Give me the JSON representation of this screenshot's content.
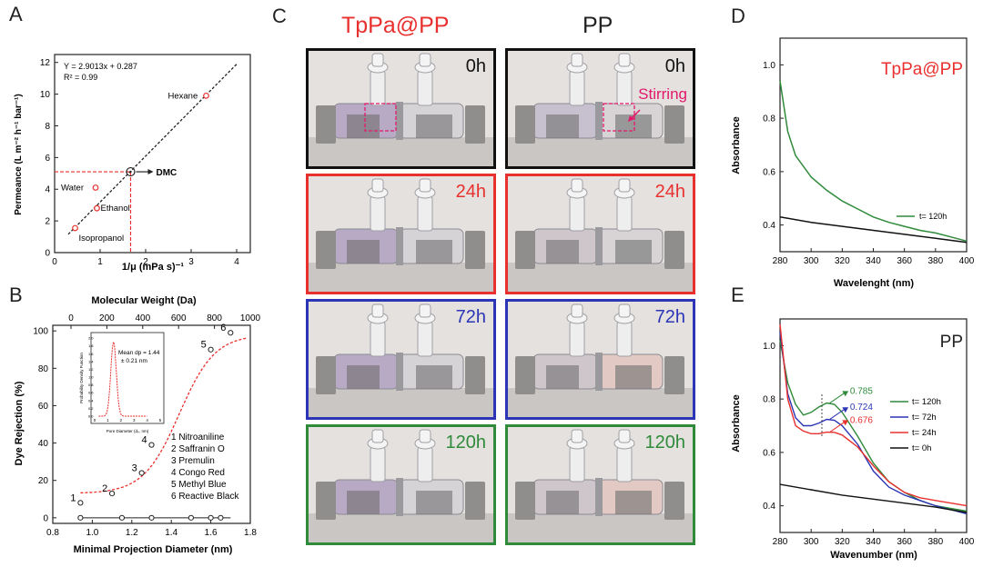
{
  "panels": {
    "A": "A",
    "B": "B",
    "C": "C",
    "D": "D",
    "E": "E"
  },
  "panelA": {
    "equation": "Y = 2.9013x + 0.287",
    "r2": "R² = 0.99",
    "xlabel": "1/μ (mPa s)⁻¹",
    "ylabel": "Permeance (L m⁻² h⁻¹ bar⁻¹)",
    "dmc_label": "DMC",
    "xticks": [
      "0",
      "1",
      "2",
      "3",
      "4"
    ],
    "yticks": [
      "0",
      "2",
      "4",
      "6",
      "8",
      "10",
      "12"
    ],
    "points": [
      {
        "label": "Hexane",
        "x": 3.33,
        "y": 9.9
      },
      {
        "label": "Water",
        "x": 0.9,
        "y": 4.1
      },
      {
        "label": "Ethanol",
        "x": 0.93,
        "y": 2.8
      },
      {
        "label": "Isopropanol",
        "x": 0.45,
        "y": 1.55
      }
    ],
    "dmc": {
      "x": 1.67,
      "y": 5.1
    }
  },
  "panelB": {
    "top_label": "Molecular Weight (Da)",
    "top_ticks": [
      "0",
      "200",
      "400",
      "600",
      "800",
      "1000"
    ],
    "xlabel": "Minimal Projection Diameter (nm)",
    "ylabel": "Dye Rejection (%)",
    "xticks": [
      "0.8",
      "1.0",
      "1.2",
      "1.4",
      "1.6",
      "1.8"
    ],
    "yticks": [
      "0",
      "20",
      "40",
      "60",
      "80",
      "100"
    ],
    "inset_text_line1": "Mean dp = 1.44",
    "inset_text_line2": "± 0.21 nm",
    "inset_xlabel": "Pore Diameter (dₚ, nm)",
    "inset_ylabel": "Probability Density Function",
    "inset_yticks": [
      "0.0",
      "0.2",
      "0.4",
      "0.6",
      "0.8",
      "1.0",
      "1.2",
      "1.4",
      "1.6",
      "1.8",
      "2.0"
    ],
    "inset_xticks": [
      "0",
      "1",
      "2",
      "3",
      "4",
      "5"
    ],
    "legend": [
      "1 Nitroaniline",
      "2 Saffranin O",
      "3 Premulin",
      "4 Congo Red",
      "5 Methyl Blue",
      "6 Reactive Black"
    ],
    "dyes": [
      {
        "n": "1",
        "d": 0.94,
        "rej": 8
      },
      {
        "n": "2",
        "d": 1.1,
        "rej": 13
      },
      {
        "n": "3",
        "d": 1.25,
        "rej": 24
      },
      {
        "n": "4",
        "d": 1.3,
        "rej": 39
      },
      {
        "n": "5",
        "d": 1.6,
        "rej": 90
      },
      {
        "n": "6",
        "d": 1.7,
        "rej": 99
      }
    ]
  },
  "panelC": {
    "col1_title": "TpPa@PP",
    "col2_title": "PP",
    "rows": [
      {
        "time": "0h",
        "color": "#111111"
      },
      {
        "time": "24h",
        "color": "#e8302e"
      },
      {
        "time": "72h",
        "color": "#2b35b5"
      },
      {
        "time": "120h",
        "color": "#2f8a3a"
      }
    ],
    "stirring_label": "Stirring"
  },
  "panelD": {
    "title": "TpPa@PP",
    "xlabel": "Wavelenght (nm)",
    "ylabel": "Absorbance",
    "xticks": [
      "280",
      "300",
      "320",
      "340",
      "360",
      "380",
      "400"
    ],
    "yticks": [
      "0.4",
      "0.6",
      "0.8",
      "1.0"
    ],
    "legend": "t= 120h"
  },
  "panelE": {
    "title": "PP",
    "xlabel": "Wavenumber (nm)",
    "ylabel": "Absorbance",
    "xticks": [
      "280",
      "300",
      "320",
      "340",
      "360",
      "380",
      "400"
    ],
    "yticks": [
      "0.4",
      "0.6",
      "0.8",
      "1.0"
    ],
    "legend": [
      "t= 120h",
      "t= 72h",
      "t= 24h",
      "t= 0h"
    ],
    "peak_labels": [
      "0.785",
      "0.724",
      "0.676"
    ]
  },
  "colors": {
    "green": "#2f8a3a",
    "blue": "#2b35b5",
    "red": "#e8302e",
    "black": "#111111",
    "dashed_red": "#e8302e"
  },
  "chart_data": [
    {
      "type": "scatter",
      "title": "",
      "xlabel": "1/μ (mPa s)⁻¹",
      "ylabel": "Permeance (L m⁻² h⁻¹ bar⁻¹)",
      "xlim": [
        0,
        4.3
      ],
      "ylim": [
        0,
        12.5
      ],
      "x": [
        0.45,
        0.93,
        0.9,
        1.67,
        3.33
      ],
      "y": [
        1.55,
        2.8,
        4.1,
        5.1,
        9.9
      ],
      "fit": "Y = 2.9013x + 0.287"
    },
    {
      "type": "scatter",
      "xlabel": "Minimal Projection Diameter (nm)",
      "ylabel": "Dye Rejection (%)",
      "xlim": [
        0.8,
        1.8
      ],
      "ylim": [
        -3,
        103
      ],
      "x": [
        0.94,
        1.1,
        1.25,
        1.3,
        1.6,
        1.7
      ],
      "y": [
        8,
        13,
        24,
        39,
        90,
        99
      ]
    },
    {
      "type": "line",
      "xlabel": "Wavelenght (nm)",
      "ylabel": "Absorbance",
      "xlim": [
        280,
        400
      ],
      "ylim": [
        0.3,
        1.1
      ],
      "series": [
        {
          "name": "t= 120h",
          "x": [
            280,
            285,
            290,
            300,
            310,
            320,
            330,
            340,
            350,
            360,
            370,
            380,
            390,
            400
          ],
          "y": [
            0.94,
            0.75,
            0.66,
            0.58,
            0.53,
            0.49,
            0.46,
            0.43,
            0.41,
            0.395,
            0.38,
            0.37,
            0.355,
            0.34
          ]
        },
        {
          "x": [
            280,
            300,
            320,
            340,
            360,
            380,
            400
          ],
          "y": [
            0.43,
            0.41,
            0.395,
            0.38,
            0.365,
            0.35,
            0.335
          ]
        }
      ]
    },
    {
      "type": "line",
      "xlabel": "Wavenumber (nm)",
      "ylabel": "Absorbance",
      "xlim": [
        280,
        400
      ],
      "ylim": [
        0.3,
        1.1
      ],
      "series": [
        {
          "name": "t= 120h",
          "x": [
            280,
            285,
            290,
            295,
            300,
            305,
            310,
            315,
            320,
            330,
            340,
            350,
            360,
            370,
            380,
            390,
            400
          ],
          "y": [
            1.02,
            0.86,
            0.78,
            0.74,
            0.75,
            0.77,
            0.785,
            0.78,
            0.75,
            0.66,
            0.56,
            0.49,
            0.45,
            0.42,
            0.4,
            0.39,
            0.38
          ]
        },
        {
          "name": "t= 72h",
          "x": [
            280,
            285,
            290,
            295,
            300,
            305,
            310,
            315,
            320,
            330,
            340,
            350,
            360,
            370,
            380,
            390,
            400
          ],
          "y": [
            1.05,
            0.82,
            0.73,
            0.7,
            0.7,
            0.71,
            0.724,
            0.72,
            0.7,
            0.63,
            0.53,
            0.47,
            0.44,
            0.42,
            0.4,
            0.385,
            0.37
          ]
        },
        {
          "name": "t= 24h",
          "x": [
            280,
            285,
            290,
            295,
            300,
            305,
            310,
            315,
            320,
            330,
            340,
            350,
            360,
            370,
            380,
            390,
            400
          ],
          "y": [
            1.08,
            0.8,
            0.7,
            0.68,
            0.67,
            0.67,
            0.676,
            0.675,
            0.665,
            0.62,
            0.55,
            0.49,
            0.45,
            0.43,
            0.42,
            0.41,
            0.4
          ]
        },
        {
          "name": "t= 0h",
          "x": [
            280,
            300,
            320,
            340,
            360,
            380,
            400
          ],
          "y": [
            0.48,
            0.46,
            0.44,
            0.425,
            0.41,
            0.395,
            0.375
          ]
        }
      ]
    }
  ]
}
